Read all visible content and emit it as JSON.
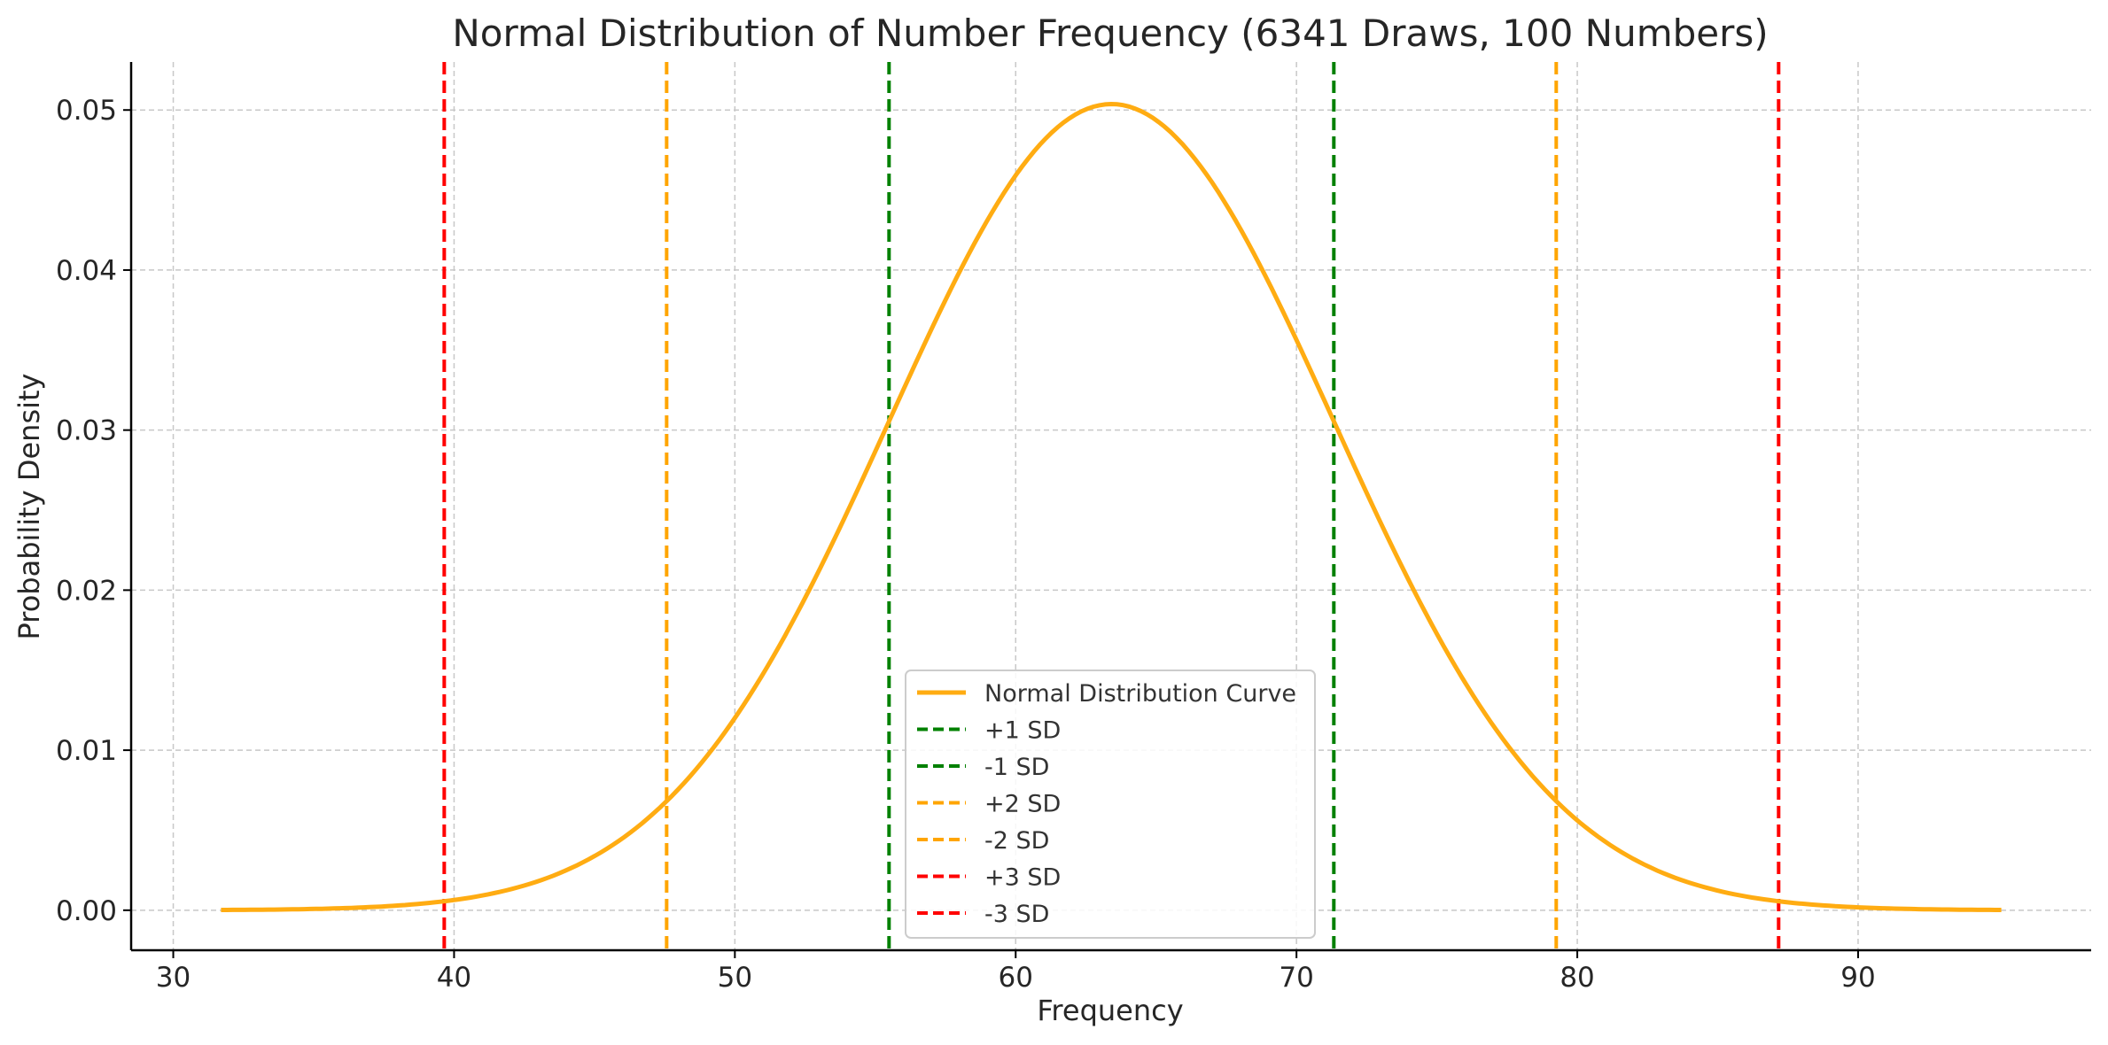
{
  "chart_data": {
    "type": "line",
    "title": "Normal Distribution of Number Frequency (6341 Draws, 100 Numbers)",
    "xlabel": "Frequency",
    "ylabel": "Probability Density",
    "xlim": [
      28.5,
      98.3
    ],
    "ylim": [
      -0.0025,
      0.053
    ],
    "xticks": [
      30,
      40,
      50,
      60,
      70,
      80,
      90
    ],
    "xtick_labels": [
      "30",
      "40",
      "50",
      "60",
      "70",
      "80",
      "90"
    ],
    "yticks": [
      0.0,
      0.01,
      0.02,
      0.03,
      0.04,
      0.05
    ],
    "ytick_labels": [
      "0.00",
      "0.01",
      "0.02",
      "0.03",
      "0.04",
      "0.05"
    ],
    "grid": true,
    "legend_position": "lower-center",
    "curve": {
      "name": "Normal Distribution Curve",
      "mean": 63.41,
      "sd": 7.92,
      "x_range": [
        31.7,
        95.1
      ],
      "color": "#FFAC12"
    },
    "vlines": [
      {
        "name": "+1 SD",
        "x": 71.33,
        "color": "#008000"
      },
      {
        "name": "-1 SD",
        "x": 55.49,
        "color": "#008000"
      },
      {
        "name": "+2 SD",
        "x": 79.25,
        "color": "#FFA500"
      },
      {
        "name": "-2 SD",
        "x": 47.57,
        "color": "#FFA500"
      },
      {
        "name": "+3 SD",
        "x": 87.17,
        "color": "#FF0000"
      },
      {
        "name": "-3 SD",
        "x": 39.65,
        "color": "#FF0000"
      }
    ]
  }
}
